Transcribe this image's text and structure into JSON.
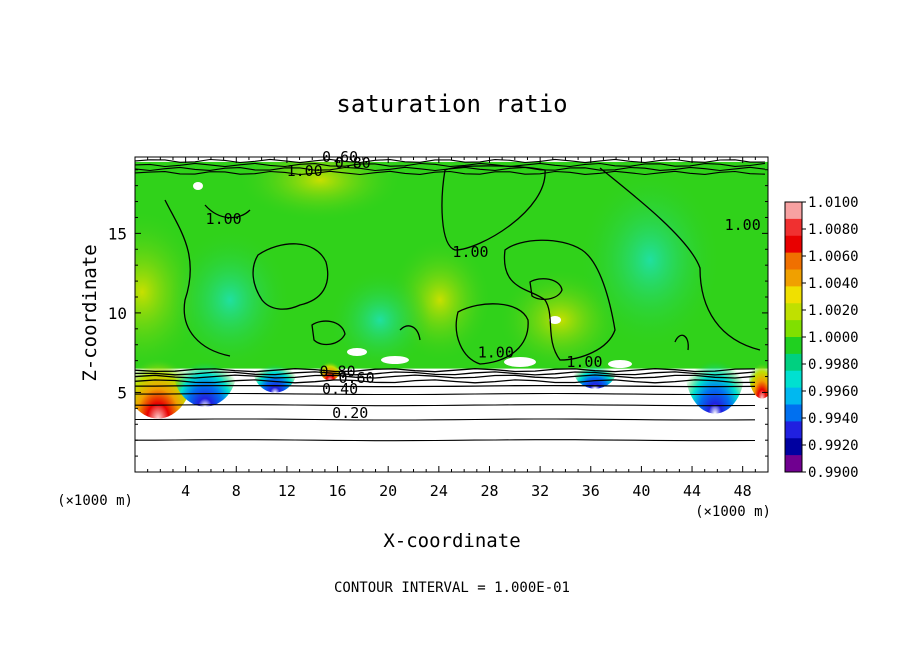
{
  "chart_data": {
    "type": "heatmap",
    "title": "saturation ratio",
    "xlabel": "X-coordinate",
    "ylabel": "Z-coordinate",
    "x_unit_left": "(×1000 m)",
    "x_unit_right": "(×1000 m)",
    "xlim": [
      0,
      50
    ],
    "ylim": [
      0,
      19.8
    ],
    "x_ticks": [
      4,
      8,
      12,
      16,
      20,
      24,
      28,
      32,
      36,
      40,
      44,
      48
    ],
    "x_tick_labels": [
      "4",
      "8",
      "12",
      "16",
      "20",
      "24",
      "28",
      "32",
      "36",
      "40",
      "44",
      "48"
    ],
    "y_ticks": [
      5,
      10,
      15
    ],
    "y_tick_labels": [
      "5",
      "10",
      "15"
    ],
    "footer": "CONTOUR INTERVAL = 1.000E-01",
    "colorbar": {
      "range": [
        0.99,
        1.01
      ],
      "labels": [
        "1.0100",
        "1.0080",
        "1.0060",
        "1.0040",
        "1.0020",
        "1.0000",
        "0.9980",
        "0.9960",
        "0.9940",
        "0.9920",
        "0.9900"
      ],
      "colors": [
        "#f7a1a1",
        "#f03030",
        "#e80000",
        "#f07000",
        "#f0a000",
        "#f0e000",
        "#c0e000",
        "#80e000",
        "#20d020",
        "#00d080",
        "#00e0d0",
        "#00b8f0",
        "#0070f0",
        "#2020e0",
        "#0000a0",
        "#700090"
      ]
    },
    "shaded_region": {
      "x_range": [
        0,
        50
      ],
      "z_range": [
        6.5,
        19.5
      ]
    },
    "contour_labels": [
      {
        "text": "0.60",
        "x": 16.2,
        "z": 19.5
      },
      {
        "text": "0.80",
        "x": 17.2,
        "z": 19.1
      },
      {
        "text": "1.00",
        "x": 13.4,
        "z": 18.6
      },
      {
        "text": "1.00",
        "x": 7.0,
        "z": 15.6
      },
      {
        "text": "1.00",
        "x": 26.5,
        "z": 13.5
      },
      {
        "text": "1.00",
        "x": 48.0,
        "z": 15.2
      },
      {
        "text": "1.00",
        "x": 28.5,
        "z": 7.2
      },
      {
        "text": "1.00",
        "x": 35.5,
        "z": 6.6
      },
      {
        "text": "0.80",
        "x": 16.0,
        "z": 6.0
      },
      {
        "text": "0.60",
        "x": 17.5,
        "z": 5.6
      },
      {
        "text": "0.40",
        "x": 16.2,
        "z": 4.9
      },
      {
        "text": "0.20",
        "x": 17.0,
        "z": 3.4
      }
    ],
    "lower_contour_levels": [
      {
        "level": 0.9,
        "z": 6.4
      },
      {
        "level": 0.8,
        "z": 6.2
      },
      {
        "level": 0.7,
        "z": 6.0
      },
      {
        "level": 0.6,
        "z": 5.7
      },
      {
        "level": 0.5,
        "z": 5.4
      },
      {
        "level": 0.4,
        "z": 4.9
      },
      {
        "level": 0.3,
        "z": 4.2
      },
      {
        "level": 0.2,
        "z": 3.3
      },
      {
        "level": 0.1,
        "z": 2.0
      }
    ]
  }
}
